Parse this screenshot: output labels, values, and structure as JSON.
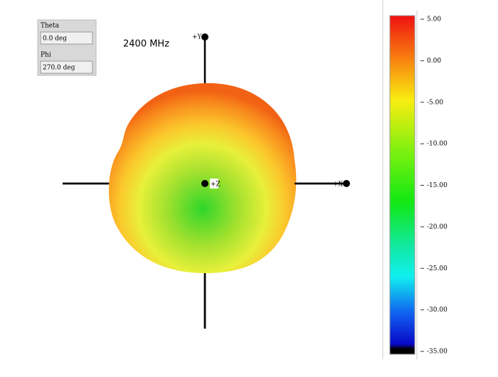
{
  "controls": [
    {
      "label": "Theta",
      "value": "0.0 deg"
    },
    {
      "label": "Phi",
      "value": "270.0 deg"
    }
  ],
  "frequency_label": "2400 MHz",
  "axis_labels": {
    "y": "+Y",
    "z": "+Z",
    "x": "+X"
  },
  "colorbar": {
    "lim": [
      -35,
      5
    ],
    "ticks": [
      {
        "value": 5,
        "label": "5.00"
      },
      {
        "value": 0,
        "label": "0.00"
      },
      {
        "value": -5,
        "label": "-5.00"
      },
      {
        "value": -10,
        "label": "-10.00"
      },
      {
        "value": -15,
        "label": "-15.00"
      },
      {
        "value": -20,
        "label": "-20.00"
      },
      {
        "value": -25,
        "label": "-25.00"
      },
      {
        "value": -30,
        "label": "-30.00"
      },
      {
        "value": -35,
        "label": "-35.00"
      }
    ]
  }
}
